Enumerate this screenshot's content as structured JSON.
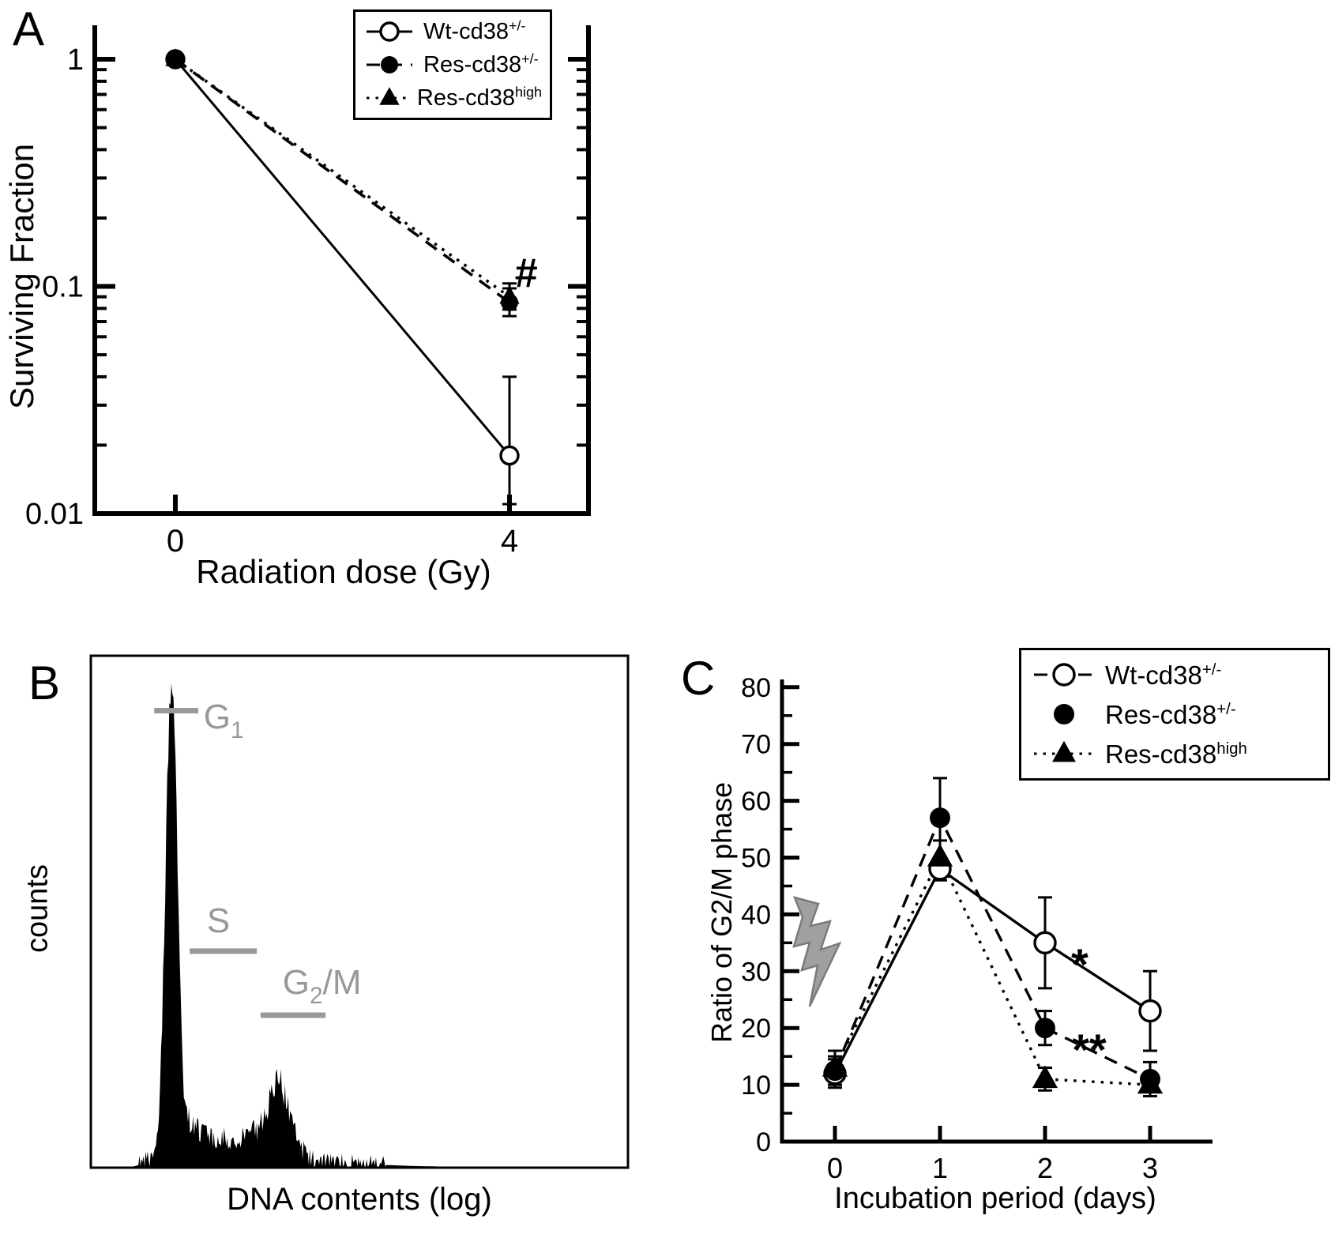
{
  "panels": {
    "a": {
      "letter": "A"
    },
    "b": {
      "letter": "B"
    },
    "c": {
      "letter": "C"
    }
  },
  "legend": {
    "entries": [
      {
        "name": "Wt-cd38",
        "sup": "+/-",
        "marker": "open-circle"
      },
      {
        "name": "Res-cd38",
        "sup": "+/-",
        "marker": "filled-circle"
      },
      {
        "name": "Res-cd38",
        "sup": "high",
        "marker": "filled-triangle"
      }
    ]
  },
  "colors": {
    "series": "#000000",
    "phase_gray": "#999999",
    "bolt_gray": "#a0a0a0"
  },
  "chart_data": [
    {
      "panel": "A",
      "type": "line",
      "xlabel": "Radiation dose (Gy)",
      "ylabel": "Surviving Fraction",
      "yscale": "log",
      "ylim": [
        0.01,
        1
      ],
      "yticks": [
        1,
        0.1,
        0.01
      ],
      "ytick_labels": [
        "1",
        "0.1",
        "0.01"
      ],
      "x": [
        0,
        4
      ],
      "xticks": [
        0,
        4
      ],
      "series": [
        {
          "name": "Wt-cd38+/-",
          "marker": "open-circle",
          "line": "solid",
          "values": [
            1,
            0.018
          ],
          "err_lo": [
            null,
            0.011
          ],
          "err_hi": [
            null,
            0.04
          ]
        },
        {
          "name": "Res-cd38+/-",
          "marker": "filled-circle",
          "line": "dashed",
          "values": [
            1,
            0.085
          ],
          "err_lo": [
            null,
            0.074
          ],
          "err_hi": [
            null,
            0.098
          ]
        },
        {
          "name": "Res-cd38high",
          "marker": "filled-triangle",
          "line": "dotted",
          "values": [
            1,
            0.09
          ],
          "err_lo": [
            null,
            0.079
          ],
          "err_hi": [
            null,
            0.103
          ]
        }
      ],
      "annotations": [
        {
          "text": "#",
          "x": 4.2,
          "y": 0.113
        }
      ]
    },
    {
      "panel": "B",
      "type": "area",
      "xlabel": "DNA contents (log)",
      "ylabel": "counts",
      "profile": [
        [
          0,
          0
        ],
        [
          0.08,
          0
        ],
        [
          0.095,
          0.005
        ],
        [
          0.105,
          0.012
        ],
        [
          0.115,
          0.03
        ],
        [
          0.125,
          0.08
        ],
        [
          0.13,
          0.18
        ],
        [
          0.135,
          0.38
        ],
        [
          0.14,
          0.65
        ],
        [
          0.145,
          0.88
        ],
        [
          0.15,
          0.95
        ],
        [
          0.155,
          0.9
        ],
        [
          0.16,
          0.7
        ],
        [
          0.165,
          0.42
        ],
        [
          0.17,
          0.22
        ],
        [
          0.175,
          0.13
        ],
        [
          0.18,
          0.1
        ],
        [
          0.19,
          0.08
        ],
        [
          0.205,
          0.068
        ],
        [
          0.225,
          0.06
        ],
        [
          0.25,
          0.055
        ],
        [
          0.275,
          0.055
        ],
        [
          0.295,
          0.062
        ],
        [
          0.31,
          0.075
        ],
        [
          0.32,
          0.09
        ],
        [
          0.33,
          0.12
        ],
        [
          0.34,
          0.155
        ],
        [
          0.348,
          0.17
        ],
        [
          0.355,
          0.165
        ],
        [
          0.362,
          0.14
        ],
        [
          0.372,
          0.1
        ],
        [
          0.382,
          0.06
        ],
        [
          0.392,
          0.035
        ],
        [
          0.405,
          0.02
        ],
        [
          0.425,
          0.012
        ],
        [
          0.455,
          0.008
        ],
        [
          0.5,
          0.005
        ],
        [
          0.55,
          0.003
        ],
        [
          0.6,
          0.001
        ],
        [
          0.65,
          0
        ],
        [
          1,
          0
        ]
      ],
      "phase_markers": [
        {
          "pre": "G",
          "sub": "1",
          "post": "",
          "bar_x1": 0.118,
          "bar_x2": 0.2,
          "bar_y": 0.91,
          "label_x": 0.21,
          "label_y": 0.875
        },
        {
          "pre": "S",
          "sub": "",
          "post": "",
          "bar_x1": 0.184,
          "bar_x2": 0.309,
          "bar_y": 0.43,
          "label_x": 0.216,
          "label_y": 0.468
        },
        {
          "pre": "G",
          "sub": "2",
          "post": "/M",
          "bar_x1": 0.316,
          "bar_x2": 0.437,
          "bar_y": 0.302,
          "label_x": 0.357,
          "label_y": 0.345
        }
      ]
    },
    {
      "panel": "C",
      "type": "line",
      "xlabel": "Incubation period (days)",
      "ylabel": "Ratio of G2/M phase",
      "ylim": [
        0,
        80
      ],
      "ytick_major": 10,
      "ytick_minor": 5,
      "x": [
        0,
        1,
        2,
        3
      ],
      "irradiation_icon": "lightning-bolt-icon",
      "series": [
        {
          "name": "Wt-cd38+/-",
          "marker": "open-circle",
          "line": "solid",
          "legend_line": "dashed",
          "values": [
            12,
            48,
            35,
            23
          ],
          "err": [
            2.5,
            2,
            8,
            7
          ]
        },
        {
          "name": "Res-cd38+/-",
          "marker": "filled-circle",
          "line": "dashed",
          "legend_line": "none",
          "values": [
            12.5,
            57,
            20,
            11
          ],
          "err": [
            2.5,
            7,
            3,
            3
          ]
        },
        {
          "name": "Res-cd38high",
          "marker": "filled-triangle",
          "line": "dotted",
          "legend_line": "dotted",
          "values": [
            13,
            50,
            11,
            10
          ],
          "err": [
            3,
            3,
            2,
            2
          ]
        }
      ],
      "annotations": [
        {
          "text": "*",
          "x": 2.33,
          "y": 31
        },
        {
          "text": "**",
          "x": 2.42,
          "y": 16
        }
      ]
    }
  ]
}
